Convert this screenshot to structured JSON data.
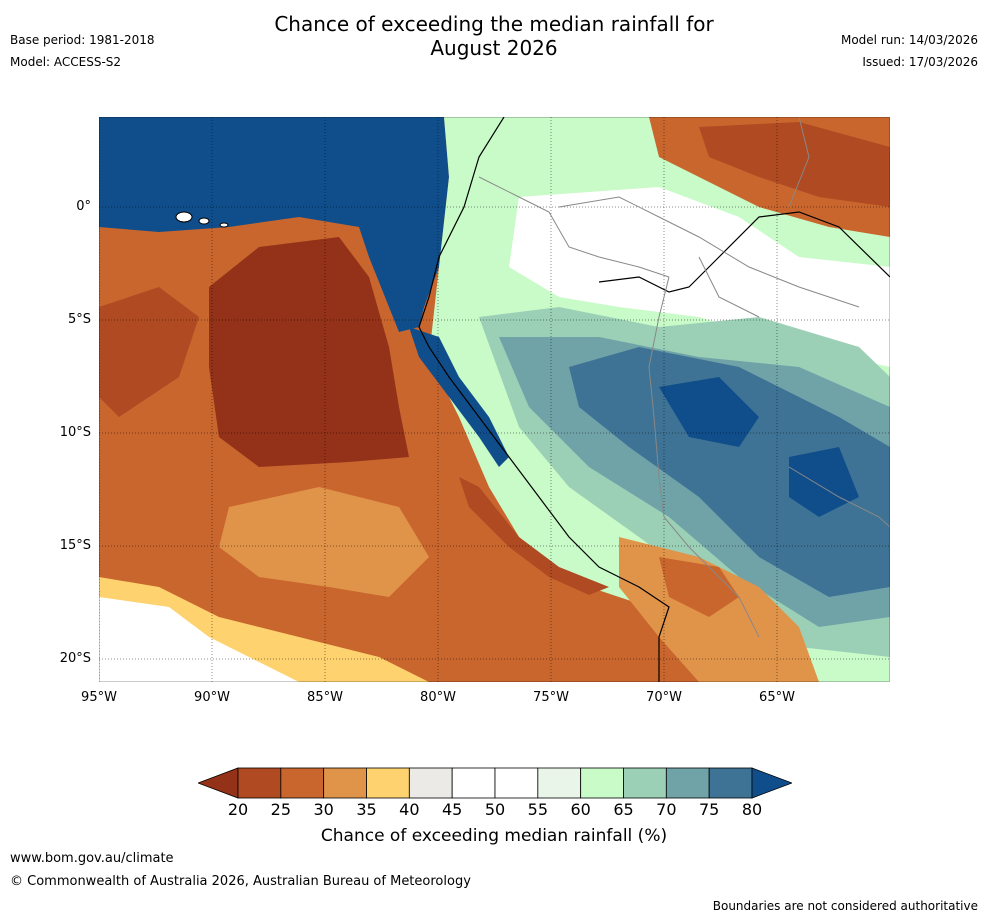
{
  "title": {
    "line1": "Chance of exceeding the median rainfall for",
    "line2": "August 2026"
  },
  "meta_left": {
    "base_period": "Base period: 1981-2018",
    "model": "Model: ACCESS-S2"
  },
  "meta_right": {
    "model_run": "Model run: 14/03/2026",
    "issued": "Issued: 17/03/2026"
  },
  "map": {
    "lon_range": [
      -95,
      -60
    ],
    "lat_range": [
      -21,
      4
    ],
    "lat_ticks": [
      {
        "value": 0,
        "label": "0°"
      },
      {
        "value": -5,
        "label": "5°S"
      },
      {
        "value": -10,
        "label": "10°S"
      },
      {
        "value": -15,
        "label": "15°S"
      },
      {
        "value": -20,
        "label": "20°S"
      }
    ],
    "lon_ticks": [
      {
        "value": -95,
        "label": "95°W"
      },
      {
        "value": -90,
        "label": "90°W"
      },
      {
        "value": -85,
        "label": "85°W"
      },
      {
        "value": -80,
        "label": "80°W"
      },
      {
        "value": -75,
        "label": "75°W"
      },
      {
        "value": -70,
        "label": "70°W"
      },
      {
        "value": -65,
        "label": "65°W"
      }
    ]
  },
  "colorbar": {
    "ticks": [
      "20",
      "25",
      "30",
      "35",
      "40",
      "45",
      "50",
      "55",
      "60",
      "65",
      "70",
      "75",
      "80"
    ],
    "colors": [
      "#933218",
      "#b04a22",
      "#c9662e",
      "#e0944a",
      "#fdd26f",
      "#eceae6",
      "#ffffff",
      "#ffffff",
      "#e8f5e8",
      "#c8fbc8",
      "#9bd0b6",
      "#6fa3a8",
      "#3e7396",
      "#104e8b"
    ],
    "label": "Chance of exceeding median rainfall (%)"
  },
  "footer": {
    "url": "www.bom.gov.au/climate",
    "copyright": "© Commonwealth of Australia 2026, Australian Bureau of Meteorology",
    "note": "Boundaries are not considered authoritative"
  }
}
